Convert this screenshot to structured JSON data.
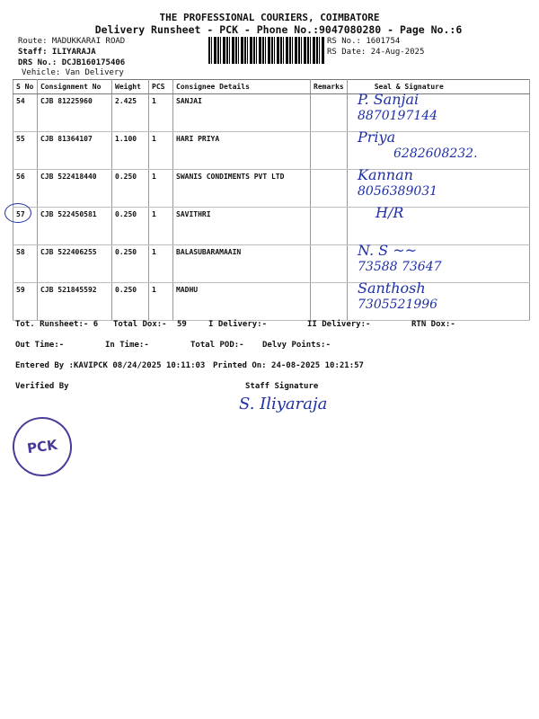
{
  "header": {
    "company": "THE PROFESSIONAL COURIERS, COIMBATORE",
    "subtitle": "Delivery Runsheet - PCK - Phone No.:9047080280 - Page No.:6",
    "route": "Route: MADUKKARAI ROAD",
    "staff": "Staff: ILIYARAJA",
    "drs": "DRS No.: DCJB160175406",
    "vehicle": "Vehicle: Van Delivery",
    "rs_no": "RS No.: 1601754",
    "rs_date": "RS Date: 24-Aug-2025"
  },
  "table": {
    "columns": [
      "S No",
      "Consignment No",
      "Weight",
      "PCS",
      "Consignee Details",
      "Remarks",
      "Seal & Signature"
    ],
    "rows": [
      {
        "sno": "54",
        "cno": "CJB 81225960",
        "weight": "2.425",
        "pcs": "1",
        "consignee": "SANJAI",
        "remarks": "",
        "signature": "P. Sanjai",
        "phone": "8870197144"
      },
      {
        "sno": "55",
        "cno": "CJB 81364107",
        "weight": "1.100",
        "pcs": "1",
        "consignee": "HARI PRIYA",
        "remarks": "",
        "signature": "Priya",
        "phone": "6282608232."
      },
      {
        "sno": "56",
        "cno": "CJB 522418440",
        "weight": "0.250",
        "pcs": "1",
        "consignee": "SWANIS CONDIMENTS PVT LTD",
        "remarks": "",
        "signature": "Kannan",
        "phone": "8056389031"
      },
      {
        "sno": "57",
        "cno": "CJB 522450581",
        "weight": "0.250",
        "pcs": "1",
        "consignee": "SAVITHRI",
        "remarks": "",
        "signature": "H/R",
        "phone": ""
      },
      {
        "sno": "58",
        "cno": "CJB 522406255",
        "weight": "0.250",
        "pcs": "1",
        "consignee": "BALASUBARAMAAIN",
        "remarks": "",
        "signature": "N. S ~~",
        "phone": "73588 73647"
      },
      {
        "sno": "59",
        "cno": "CJB 521845592",
        "weight": "0.250",
        "pcs": "1",
        "consignee": "MADHU",
        "remarks": "",
        "signature": "Santhosh",
        "phone": "7305521996"
      }
    ]
  },
  "footer": {
    "tot_runsheet": "Tot. Runsheet:- 6",
    "total_dox": "Total Dox:-",
    "total_dox_val": "59",
    "i_delivery": "I Delivery:-",
    "ii_delivery": "II Delivery:-",
    "rtn_dox": "RTN Dox:-",
    "out_time": "Out Time:-",
    "in_time": "In Time:-",
    "total_pod": "Total POD:-",
    "delvy_points": "Delvy Points:-",
    "entered_by": "Entered By :KAVIPCK 08/24/2025 10:11:03",
    "printed_on": "Printed On: 24-08-2025 10:21:57",
    "verified_by": "Verified By",
    "staff_signature": "Staff Signature",
    "staff_sign_hw": "S. Iliyaraja",
    "stamp": "PCK"
  },
  "colors": {
    "ink": "#1f2fa8",
    "stamp": "#4a3a9a"
  }
}
